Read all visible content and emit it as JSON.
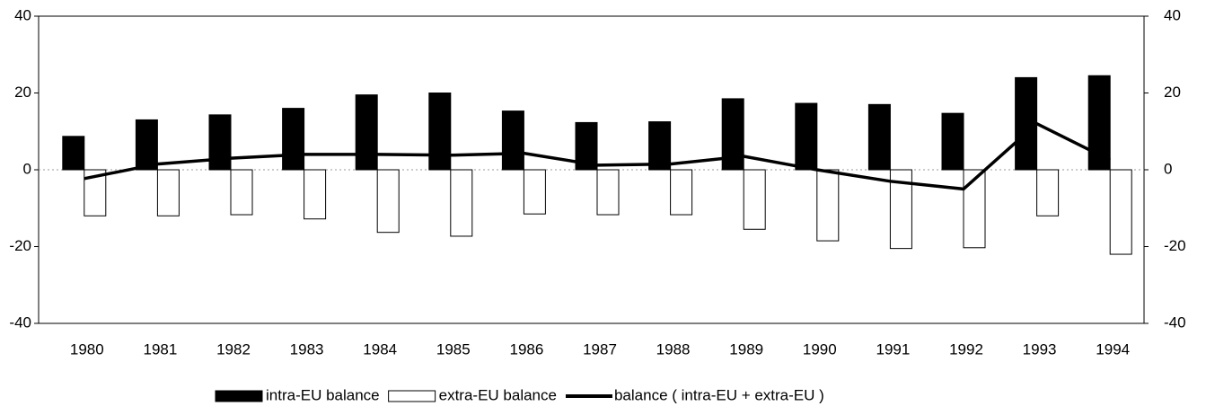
{
  "chart_data": {
    "type": "bar",
    "categories": [
      "1980",
      "1981",
      "1982",
      "1983",
      "1984",
      "1985",
      "1986",
      "1987",
      "1988",
      "1989",
      "1990",
      "1991",
      "1992",
      "1993",
      "1994"
    ],
    "series": [
      {
        "name": "intra-EU balance",
        "color": "#000000",
        "type": "bar",
        "values": [
          8.7,
          13,
          14.3,
          16,
          19.5,
          20,
          15.3,
          12.3,
          12.5,
          18.5,
          17.3,
          17,
          14.7,
          24,
          24.5
        ]
      },
      {
        "name": "extra-EU balance",
        "color": "#ffffff",
        "type": "bar",
        "values": [
          -12,
          -12,
          -11.7,
          -12.8,
          -16.3,
          -17.3,
          -11.5,
          -11.7,
          -11.7,
          -15.5,
          -18.5,
          -20.5,
          -20.3,
          -12,
          -22
        ]
      },
      {
        "name": "balance ( intra-EU + extra-EU )",
        "color": "#000000",
        "type": "line",
        "values": [
          -2.3,
          1.5,
          3,
          4,
          4,
          3.8,
          4.3,
          1.2,
          1.5,
          3.5,
          0,
          -3,
          -5,
          12,
          2.5
        ]
      }
    ],
    "ylim": [
      -40,
      40
    ],
    "yticks": [
      -40,
      -20,
      0,
      20,
      40
    ],
    "y2lim": [
      -40,
      40
    ],
    "y2ticks": [
      -40,
      -20,
      0,
      20,
      40
    ],
    "legend": "bottom"
  }
}
